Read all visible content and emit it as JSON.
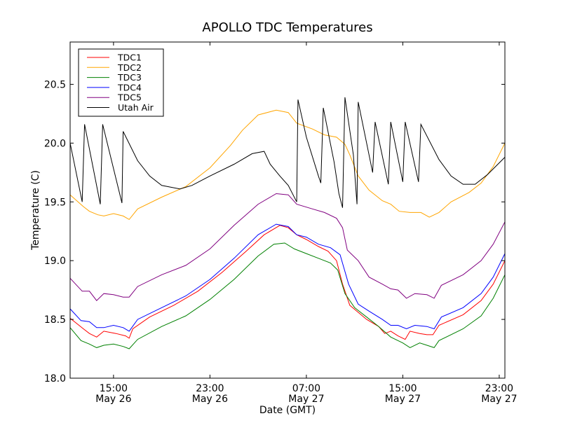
{
  "chart_data": {
    "type": "line",
    "title": "APOLLO TDC Temperatures",
    "xlabel": "Date (GMT)",
    "ylabel": "Temperature (C)",
    "x_units": "hours since May 26 00:00 GMT",
    "xlim": [
      11.4,
      47.47
    ],
    "ylim": [
      18.0,
      20.86
    ],
    "yticks": [
      18.0,
      18.5,
      19.0,
      19.5,
      20.0,
      20.5
    ],
    "ytick_labels": [
      "18.0",
      "18.5",
      "19.0",
      "19.5",
      "20.0",
      "20.5"
    ],
    "xticks": [
      15,
      23,
      31,
      39,
      47
    ],
    "xtick_labels": [
      [
        "15:00",
        "May 26"
      ],
      [
        "23:00",
        "May 26"
      ],
      [
        "07:00",
        "May 27"
      ],
      [
        "15:00",
        "May 27"
      ],
      [
        "23:00",
        "May 27"
      ]
    ],
    "grid": false,
    "legend_position": "top-left",
    "series": [
      {
        "name": "TDC1",
        "color": "#ff0000",
        "points": [
          [
            11.4,
            18.51
          ],
          [
            12.5,
            18.42
          ],
          [
            13.0,
            18.38
          ],
          [
            13.6,
            18.35
          ],
          [
            14.2,
            18.4
          ],
          [
            15.2,
            18.38
          ],
          [
            16.0,
            18.36
          ],
          [
            16.3,
            18.34
          ],
          [
            16.6,
            18.42
          ],
          [
            18.0,
            18.52
          ],
          [
            20.0,
            18.62
          ],
          [
            22.0,
            18.74
          ],
          [
            24.0,
            18.9
          ],
          [
            26.0,
            19.08
          ],
          [
            27.5,
            19.22
          ],
          [
            28.8,
            19.3
          ],
          [
            29.5,
            19.28
          ],
          [
            30.2,
            19.22
          ],
          [
            31.0,
            19.18
          ],
          [
            32.0,
            19.12
          ],
          [
            32.8,
            19.08
          ],
          [
            33.5,
            19.0
          ],
          [
            34.0,
            18.8
          ],
          [
            34.6,
            18.62
          ],
          [
            35.3,
            18.56
          ],
          [
            36.0,
            18.5
          ],
          [
            37.0,
            18.44
          ],
          [
            37.5,
            18.38
          ],
          [
            38.0,
            18.4
          ],
          [
            38.6,
            18.36
          ],
          [
            39.2,
            18.33
          ],
          [
            39.6,
            18.4
          ],
          [
            40.4,
            18.38
          ],
          [
            41.0,
            18.37
          ],
          [
            41.5,
            18.37
          ],
          [
            42.0,
            18.45
          ],
          [
            44.0,
            18.54
          ],
          [
            45.5,
            18.66
          ],
          [
            46.5,
            18.8
          ],
          [
            47.47,
            19.0
          ]
        ]
      },
      {
        "name": "TDC2",
        "color": "#ffa500",
        "points": [
          [
            11.4,
            19.56
          ],
          [
            12.5,
            19.46
          ],
          [
            13.0,
            19.42
          ],
          [
            13.7,
            19.39
          ],
          [
            14.2,
            19.38
          ],
          [
            15.0,
            19.4
          ],
          [
            15.8,
            19.38
          ],
          [
            16.3,
            19.35
          ],
          [
            17.0,
            19.44
          ],
          [
            19.0,
            19.54
          ],
          [
            21.0,
            19.63
          ],
          [
            23.0,
            19.79
          ],
          [
            24.7,
            19.98
          ],
          [
            25.7,
            20.11
          ],
          [
            27.0,
            20.24
          ],
          [
            28.5,
            20.28
          ],
          [
            29.5,
            20.26
          ],
          [
            30.2,
            20.17
          ],
          [
            31.5,
            20.12
          ],
          [
            32.5,
            20.07
          ],
          [
            33.5,
            20.05
          ],
          [
            34.2,
            19.99
          ],
          [
            34.6,
            19.9
          ],
          [
            35.3,
            19.72
          ],
          [
            36.2,
            19.6
          ],
          [
            37.3,
            19.51
          ],
          [
            38.0,
            19.48
          ],
          [
            38.7,
            19.42
          ],
          [
            39.6,
            19.41
          ],
          [
            40.5,
            19.41
          ],
          [
            41.2,
            19.37
          ],
          [
            42.0,
            19.41
          ],
          [
            43.0,
            19.5
          ],
          [
            44.5,
            19.58
          ],
          [
            45.5,
            19.66
          ],
          [
            46.5,
            19.8
          ],
          [
            47.47,
            20.0
          ]
        ]
      },
      {
        "name": "TDC3",
        "color": "#008000",
        "points": [
          [
            11.4,
            18.43
          ],
          [
            12.3,
            18.32
          ],
          [
            13.0,
            18.29
          ],
          [
            13.6,
            18.26
          ],
          [
            14.2,
            18.28
          ],
          [
            15.0,
            18.29
          ],
          [
            15.8,
            18.27
          ],
          [
            16.3,
            18.25
          ],
          [
            17.0,
            18.33
          ],
          [
            19.0,
            18.44
          ],
          [
            21.0,
            18.53
          ],
          [
            23.0,
            18.67
          ],
          [
            25.0,
            18.84
          ],
          [
            27.0,
            19.04
          ],
          [
            28.3,
            19.14
          ],
          [
            29.2,
            19.15
          ],
          [
            30.0,
            19.1
          ],
          [
            31.0,
            19.06
          ],
          [
            32.0,
            19.02
          ],
          [
            33.0,
            18.98
          ],
          [
            33.6,
            18.92
          ],
          [
            34.2,
            18.72
          ],
          [
            35.0,
            18.6
          ],
          [
            36.0,
            18.52
          ],
          [
            37.0,
            18.44
          ],
          [
            38.0,
            18.35
          ],
          [
            39.0,
            18.3
          ],
          [
            39.6,
            18.26
          ],
          [
            40.4,
            18.3
          ],
          [
            41.0,
            18.28
          ],
          [
            41.6,
            18.26
          ],
          [
            42.0,
            18.32
          ],
          [
            44.0,
            18.42
          ],
          [
            45.5,
            18.53
          ],
          [
            46.5,
            18.68
          ],
          [
            47.47,
            18.88
          ]
        ]
      },
      {
        "name": "TDC4",
        "color": "#0000ff",
        "points": [
          [
            11.4,
            18.59
          ],
          [
            12.3,
            18.49
          ],
          [
            13.0,
            18.48
          ],
          [
            13.6,
            18.43
          ],
          [
            14.2,
            18.43
          ],
          [
            15.0,
            18.45
          ],
          [
            15.8,
            18.43
          ],
          [
            16.3,
            18.4
          ],
          [
            17.0,
            18.5
          ],
          [
            19.0,
            18.6
          ],
          [
            21.0,
            18.7
          ],
          [
            23.0,
            18.84
          ],
          [
            25.0,
            19.02
          ],
          [
            27.0,
            19.22
          ],
          [
            28.5,
            19.31
          ],
          [
            29.5,
            19.29
          ],
          [
            30.2,
            19.22
          ],
          [
            31.0,
            19.2
          ],
          [
            32.0,
            19.14
          ],
          [
            33.0,
            19.11
          ],
          [
            33.8,
            19.05
          ],
          [
            34.5,
            18.8
          ],
          [
            35.3,
            18.63
          ],
          [
            36.2,
            18.57
          ],
          [
            37.3,
            18.5
          ],
          [
            38.0,
            18.45
          ],
          [
            38.6,
            18.45
          ],
          [
            39.3,
            18.42
          ],
          [
            40.0,
            18.45
          ],
          [
            41.0,
            18.44
          ],
          [
            41.6,
            18.42
          ],
          [
            42.2,
            18.52
          ],
          [
            44.0,
            18.6
          ],
          [
            45.5,
            18.72
          ],
          [
            46.5,
            18.86
          ],
          [
            47.47,
            19.06
          ]
        ]
      },
      {
        "name": "TDC5",
        "color": "#800080",
        "points": [
          [
            11.4,
            18.85
          ],
          [
            12.4,
            18.74
          ],
          [
            13.0,
            18.74
          ],
          [
            13.6,
            18.66
          ],
          [
            14.2,
            18.72
          ],
          [
            15.0,
            18.71
          ],
          [
            15.8,
            18.69
          ],
          [
            16.3,
            18.69
          ],
          [
            17.0,
            18.78
          ],
          [
            19.0,
            18.88
          ],
          [
            21.0,
            18.96
          ],
          [
            23.0,
            19.1
          ],
          [
            25.0,
            19.3
          ],
          [
            27.0,
            19.48
          ],
          [
            28.5,
            19.57
          ],
          [
            29.5,
            19.56
          ],
          [
            30.2,
            19.48
          ],
          [
            31.5,
            19.44
          ],
          [
            32.5,
            19.41
          ],
          [
            33.5,
            19.36
          ],
          [
            34.0,
            19.28
          ],
          [
            34.4,
            19.09
          ],
          [
            35.3,
            19.0
          ],
          [
            36.2,
            18.86
          ],
          [
            37.3,
            18.8
          ],
          [
            38.0,
            18.76
          ],
          [
            38.6,
            18.75
          ],
          [
            39.3,
            18.68
          ],
          [
            40.0,
            18.72
          ],
          [
            41.0,
            18.71
          ],
          [
            41.6,
            18.68
          ],
          [
            42.2,
            18.79
          ],
          [
            44.0,
            18.88
          ],
          [
            45.5,
            19.0
          ],
          [
            46.5,
            19.14
          ],
          [
            47.47,
            19.33
          ]
        ]
      },
      {
        "name": "Utah Air",
        "color": "#000000",
        "points": [
          [
            11.4,
            20.0
          ],
          [
            12.4,
            19.5
          ],
          [
            12.6,
            20.16
          ],
          [
            13.9,
            19.48
          ],
          [
            14.1,
            20.16
          ],
          [
            15.7,
            19.49
          ],
          [
            15.8,
            20.1
          ],
          [
            17.0,
            19.85
          ],
          [
            18.0,
            19.72
          ],
          [
            19.0,
            19.64
          ],
          [
            20.5,
            19.61
          ],
          [
            21.5,
            19.64
          ],
          [
            23.0,
            19.72
          ],
          [
            25.0,
            19.82
          ],
          [
            26.5,
            19.91
          ],
          [
            27.5,
            19.93
          ],
          [
            28.0,
            19.82
          ],
          [
            28.8,
            19.72
          ],
          [
            29.5,
            19.64
          ],
          [
            30.2,
            19.5
          ],
          [
            30.3,
            20.37
          ],
          [
            31.0,
            20.05
          ],
          [
            32.0,
            19.72
          ],
          [
            32.2,
            19.66
          ],
          [
            32.4,
            20.3
          ],
          [
            33.3,
            19.84
          ],
          [
            33.7,
            19.57
          ],
          [
            34.0,
            19.45
          ],
          [
            34.2,
            20.39
          ],
          [
            34.9,
            19.9
          ],
          [
            35.2,
            19.48
          ],
          [
            35.3,
            20.35
          ],
          [
            36.5,
            19.75
          ],
          [
            36.7,
            20.18
          ],
          [
            37.8,
            19.65
          ],
          [
            38.0,
            20.18
          ],
          [
            39.0,
            19.67
          ],
          [
            39.2,
            20.18
          ],
          [
            40.3,
            19.67
          ],
          [
            40.5,
            20.16
          ],
          [
            42.0,
            19.86
          ],
          [
            43.0,
            19.72
          ],
          [
            44.0,
            19.65
          ],
          [
            45.0,
            19.65
          ],
          [
            46.0,
            19.73
          ],
          [
            47.47,
            19.88
          ]
        ]
      }
    ]
  }
}
